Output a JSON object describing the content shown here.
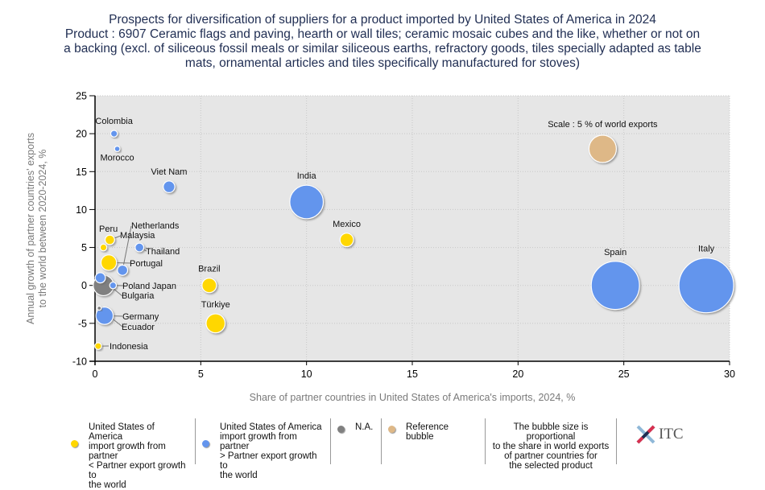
{
  "title_lines": [
    "Prospects for diversification of suppliers for a product imported by United States of America in 2024",
    "Product : 6907 Ceramic flags and paving, hearth or wall tiles; ceramic mosaic cubes and the like, whether or not on",
    "a backing (excl. of siliceous fossil meals or similar siliceous earths, refractory goods, tiles specially adapted as table",
    "mats, ornamental articles and tiles specifically manufactured for stoves)"
  ],
  "colors": {
    "yellow": "#FFD700",
    "blue": "#6495ED",
    "grey": "#808080",
    "reference": "#DEB887",
    "plot_bg": "#E6E6E6"
  },
  "chart_data": {
    "type": "scatter",
    "title": "Prospects for diversification of suppliers for a product imported by United States of America in 2024",
    "xlabel": "Share of partner countries in United States of America's imports, 2024, %",
    "ylabel_lines": [
      "Annual growth of partner countries' exports",
      "to the world between 2020-2024, %"
    ],
    "xlim": [
      0,
      30
    ],
    "ylim": [
      -10,
      25
    ],
    "xticks": [
      0,
      5,
      10,
      15,
      20,
      25,
      30
    ],
    "yticks": [
      -10,
      -5,
      0,
      5,
      10,
      15,
      20,
      25
    ],
    "grid": true,
    "points": [
      {
        "name": "Colombia",
        "x": 0.9,
        "y": 20,
        "size": 0.3,
        "category": "blue",
        "label_pos": "above"
      },
      {
        "name": "Morocco",
        "x": 1.05,
        "y": 18,
        "size": 0.2,
        "category": "blue",
        "label_pos": "below"
      },
      {
        "name": "Viet Nam",
        "x": 3.5,
        "y": 13,
        "size": 0.9,
        "category": "blue",
        "label_pos": "above"
      },
      {
        "name": "India",
        "x": 10,
        "y": 11,
        "size": 7.5,
        "category": "blue",
        "label_pos": "above"
      },
      {
        "name": "Mexico",
        "x": 11.9,
        "y": 6,
        "size": 1.2,
        "category": "yellow",
        "label_pos": "above"
      },
      {
        "name": "Brazil",
        "x": 5.4,
        "y": 0,
        "size": 1.4,
        "category": "yellow",
        "label_pos": "above"
      },
      {
        "name": "Türkiye",
        "x": 5.7,
        "y": -5,
        "size": 2.4,
        "category": "yellow",
        "label_pos": "above"
      },
      {
        "name": "Spain",
        "x": 24.6,
        "y": 0,
        "size": 15.5,
        "category": "blue",
        "label_pos": "above"
      },
      {
        "name": "Italy",
        "x": 28.9,
        "y": 0,
        "size": 20,
        "category": "blue",
        "label_pos": "above"
      },
      {
        "name": "Peru",
        "x": 0.4,
        "y": 5,
        "size": 0.3,
        "category": "yellow",
        "label_pos": "callout"
      },
      {
        "name": "Malaysia",
        "x": 0.7,
        "y": 6,
        "size": 0.6,
        "category": "yellow",
        "label_pos": "callout"
      },
      {
        "name": "Netherlands",
        "x": 1.3,
        "y": 2,
        "size": 0.7,
        "category": "blue",
        "label_pos": "callout"
      },
      {
        "name": "Thailand",
        "x": 2.1,
        "y": 5,
        "size": 0.5,
        "category": "blue",
        "label_pos": "callout"
      },
      {
        "name": "Portugal",
        "x": 0.65,
        "y": 3,
        "size": 1.6,
        "category": "yellow",
        "label_pos": "callout"
      },
      {
        "name": "Bulgaria",
        "x": 0.25,
        "y": 1,
        "size": 0.7,
        "category": "blue",
        "label_pos": "callout"
      },
      {
        "name": "Poland",
        "x": 0.4,
        "y": 0,
        "size": 2.8,
        "category": "grey",
        "label_pos": "callout"
      },
      {
        "name": "Japan",
        "x": 0.85,
        "y": 0,
        "size": 0.3,
        "category": "blue",
        "label_pos": "callout"
      },
      {
        "name": "Germany",
        "x": 0.45,
        "y": -4,
        "size": 2.0,
        "category": "blue",
        "label_pos": "callout"
      },
      {
        "name": "Ecuador",
        "x": 0.2,
        "y": -3,
        "size": 0.1,
        "category": "grey",
        "label_pos": "callout"
      },
      {
        "name": "Indonesia",
        "x": 0.15,
        "y": -8,
        "size": 0.3,
        "category": "yellow",
        "label_pos": "callout"
      }
    ],
    "reference_bubble": {
      "label": "Scale : 5 % of world exports",
      "x": 24,
      "y": 18,
      "size": 5
    },
    "legend": [
      {
        "category": "yellow",
        "label": "United States of America import growth from partner < Partner export growth to the world"
      },
      {
        "category": "blue",
        "label": "United States of America import growth from partner > Partner export growth to the world"
      },
      {
        "category": "grey",
        "label": "N.A."
      },
      {
        "category": "reference",
        "label": "Reference bubble"
      }
    ],
    "legend_placement": "bottom",
    "note": "The bubble size is proportional to the share in world exports of partner countries for the selected product"
  },
  "legend_text": {
    "yellow": [
      "United States of America",
      "import growth from partner",
      "< Partner export growth to",
      "the world"
    ],
    "blue": [
      "United States of America",
      "import growth from partner",
      "> Partner export growth to",
      "the world"
    ],
    "grey": "N.A.",
    "reference": "Reference bubble",
    "note": [
      "The bubble size is proportional",
      "to the share in world exports",
      "of partner countries for",
      "the selected product"
    ]
  },
  "logo_text": "ITC"
}
